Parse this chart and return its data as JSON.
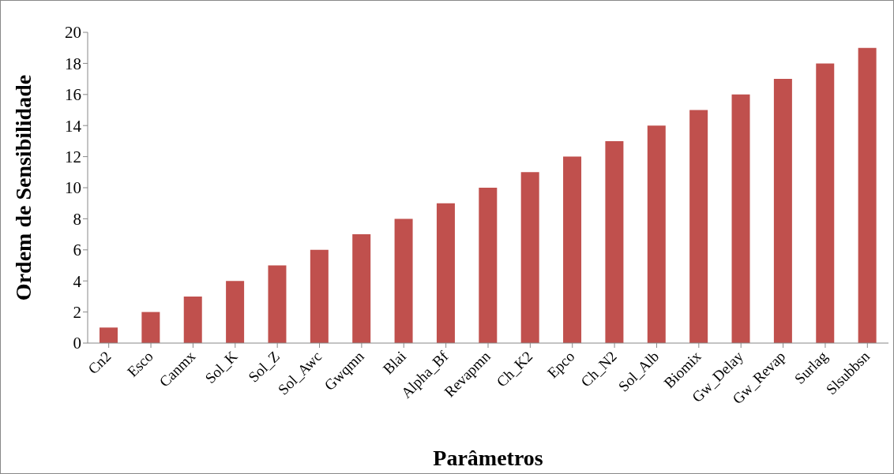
{
  "chart_data": {
    "type": "bar",
    "xlabel": "Parâmetros",
    "ylabel": "Ordem de Sensibilidade",
    "categories": [
      "Cn2",
      "Esco",
      "Canmx",
      "Sol_K",
      "Sol_Z",
      "Sol_Awc",
      "Gwqmn",
      "Blai",
      "Alpha_Bf",
      "Revapmn",
      "Ch_K2",
      "Epco",
      "Ch_N2",
      "Sol_Alb",
      "Biomix",
      "Gw_Delay",
      "Gw_Revap",
      "Surlag",
      "Slsubbsn"
    ],
    "values": [
      1,
      2,
      3,
      4,
      5,
      6,
      7,
      8,
      9,
      10,
      11,
      12,
      13,
      14,
      15,
      16,
      17,
      18,
      19
    ],
    "color": "#c0504d",
    "ylim": [
      0,
      20
    ],
    "yticks": [
      0,
      2,
      4,
      6,
      8,
      10,
      12,
      14,
      16,
      18,
      20
    ],
    "grid": false,
    "legend": false
  }
}
